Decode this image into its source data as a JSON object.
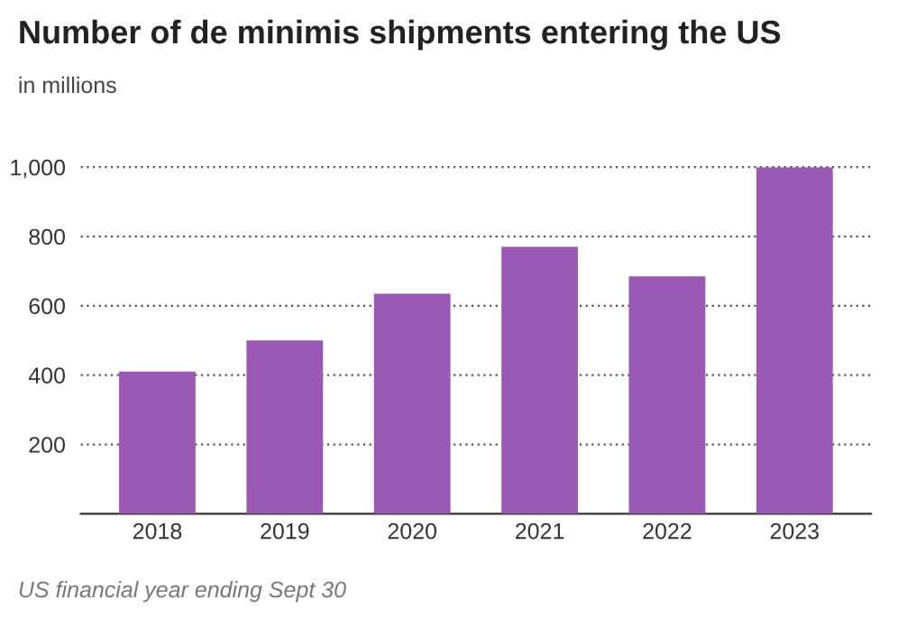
{
  "chart_data": {
    "type": "bar",
    "title": "Number of de minimis shipments entering the US",
    "subtitle": "in millions",
    "categories": [
      "2018",
      "2019",
      "2020",
      "2021",
      "2022",
      "2023"
    ],
    "values": [
      410,
      500,
      635,
      770,
      685,
      1000
    ],
    "color": "#9b59b6",
    "ylim": [
      0,
      1000
    ],
    "yticks": [
      200,
      400,
      600,
      800,
      {
        "value": 1000,
        "label": "1,000"
      }
    ],
    "grid": "y",
    "annotations": [
      "US financial year ending Sept 30"
    ]
  }
}
